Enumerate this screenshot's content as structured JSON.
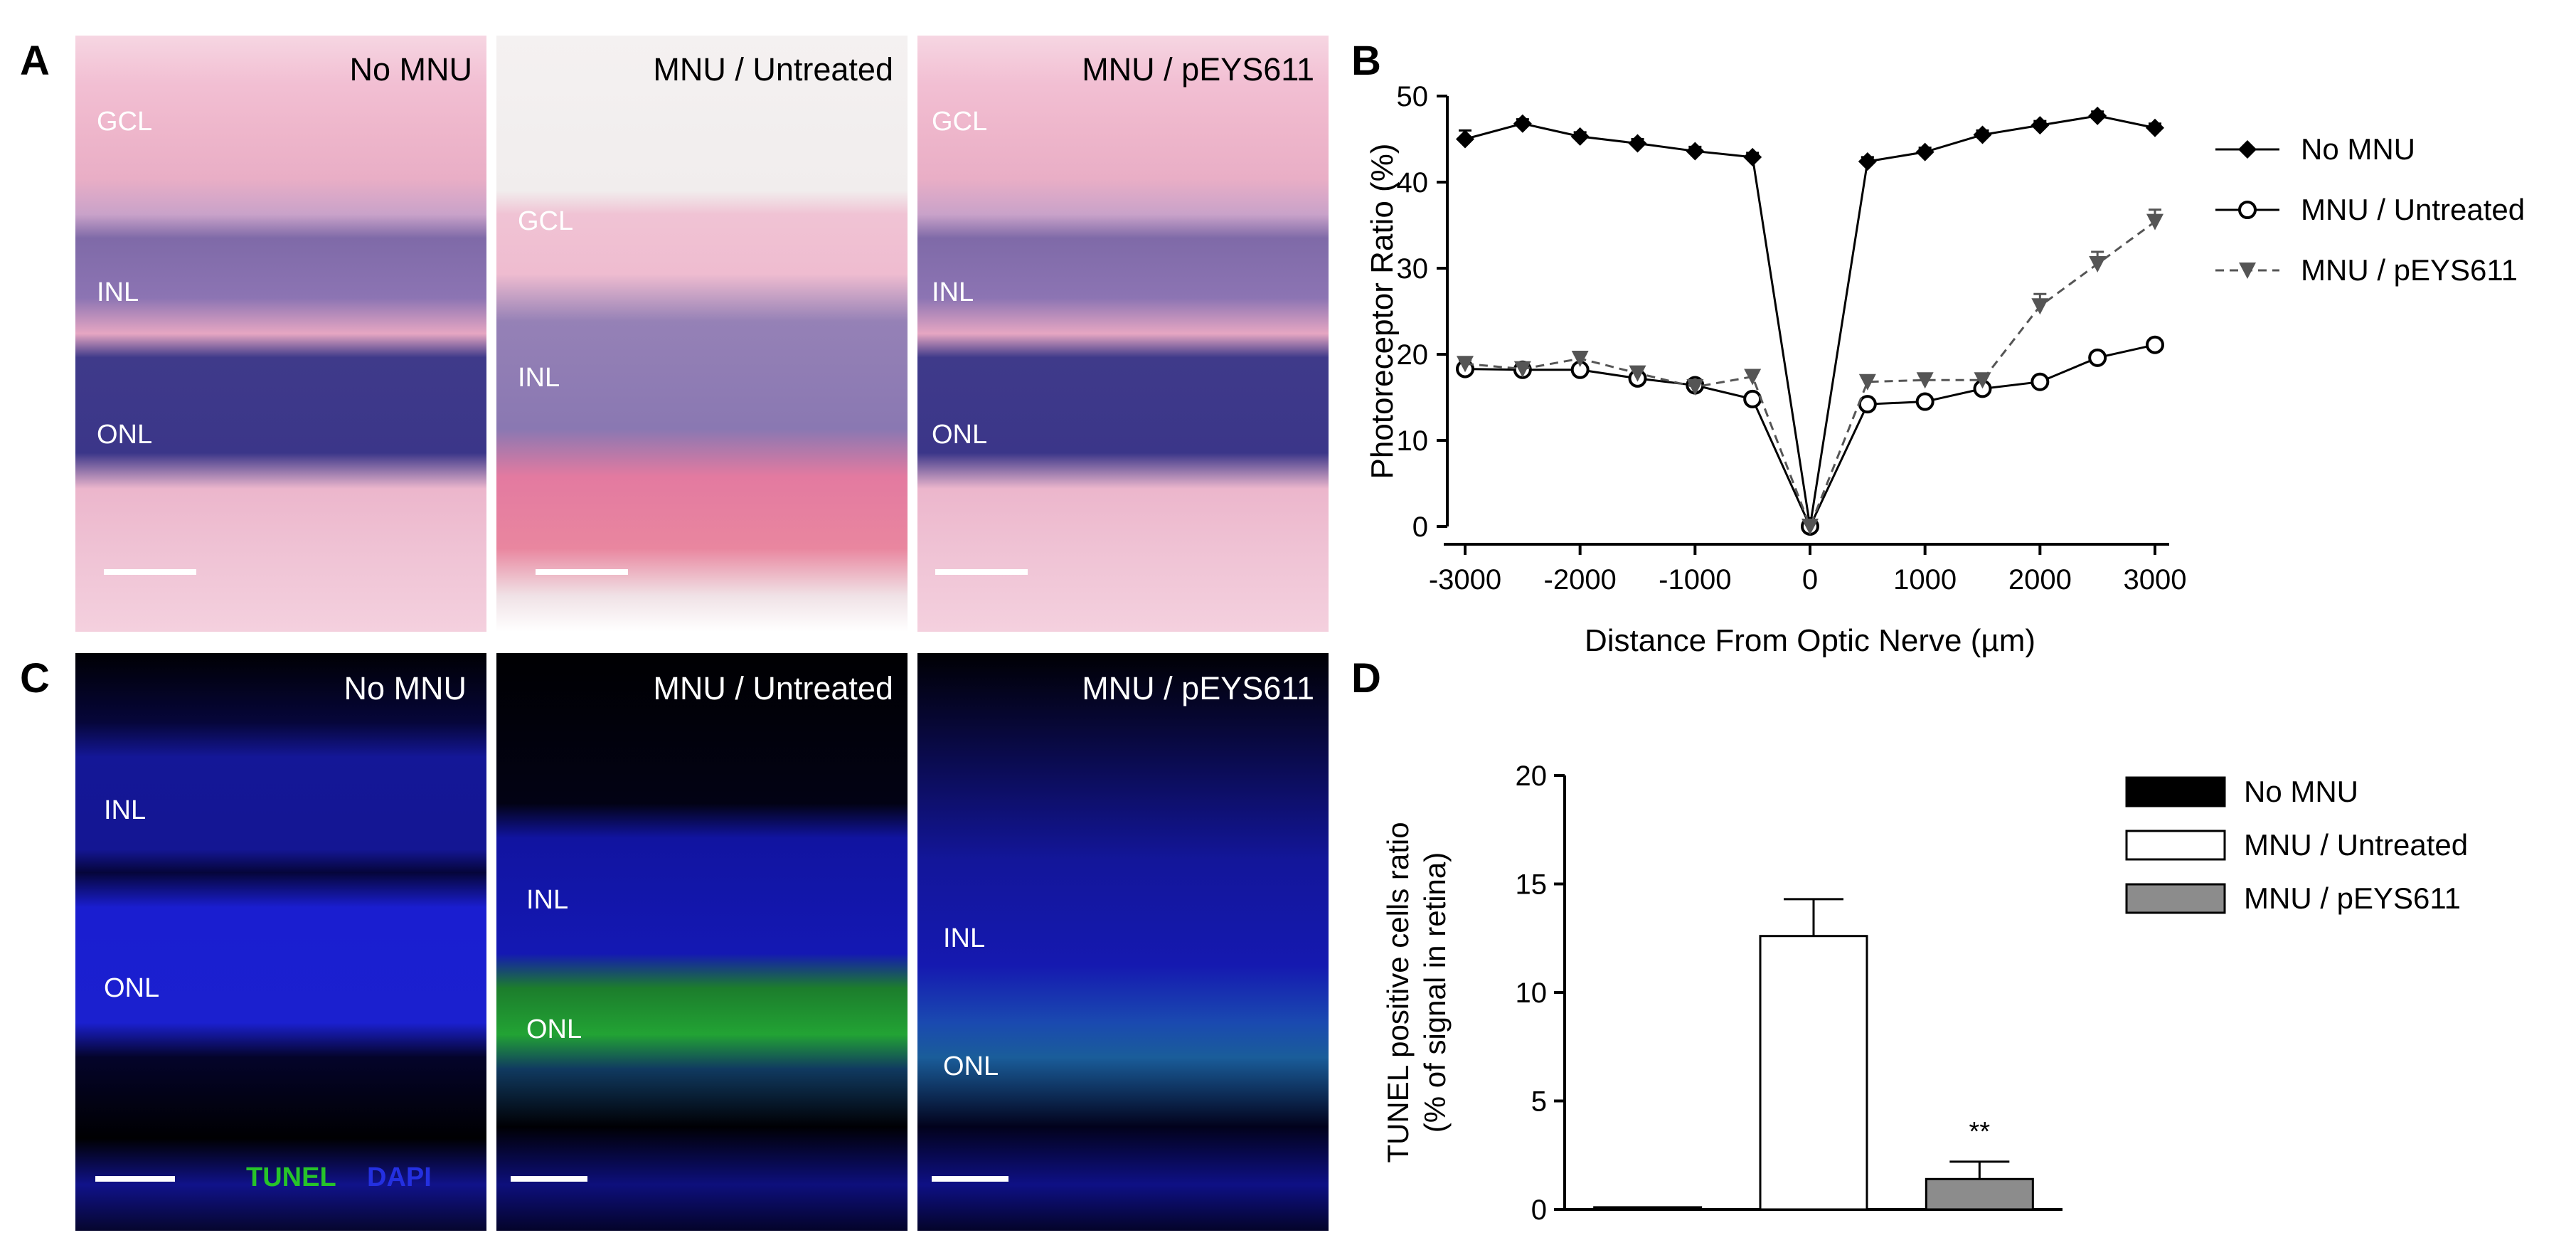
{
  "panels": {
    "a": {
      "letter": "A",
      "images": [
        {
          "title": "No MNU",
          "labels": [
            "GCL",
            "INL",
            "ONL"
          ]
        },
        {
          "title": "MNU / Untreated",
          "labels": [
            "GCL",
            "INL"
          ]
        },
        {
          "title": "MNU / pEYS611",
          "labels": [
            "GCL",
            "INL",
            "ONL"
          ]
        }
      ]
    },
    "b": {
      "letter": "B"
    },
    "c": {
      "letter": "C",
      "images": [
        {
          "title": "No MNU",
          "labels": [
            "INL",
            "ONL"
          ]
        },
        {
          "title": "MNU / Untreated",
          "labels": [
            "INL",
            "ONL"
          ]
        },
        {
          "title": "MNU / pEYS611",
          "labels": [
            "INL",
            "ONL"
          ]
        }
      ],
      "stain_tunel": "TUNEL",
      "stain_dapi": "DAPI",
      "colors": {
        "tunel": "#27c42a",
        "dapi": "#2430e0"
      }
    },
    "d": {
      "letter": "D"
    }
  },
  "chart_data": [
    {
      "type": "line",
      "xlabel": "Distance From Optic Nerve (µm)",
      "ylabel": "Photoreceptor Ratio (%)",
      "xlim": [
        -3000,
        3000
      ],
      "ylim": [
        0,
        50
      ],
      "x": [
        -3000,
        -2500,
        -2000,
        -1500,
        -1000,
        -500,
        0,
        500,
        1000,
        1500,
        2000,
        2500,
        3000
      ],
      "xticks": [
        "-3000",
        "-2000",
        "-1000",
        "0",
        "1000",
        "2000",
        "3000"
      ],
      "yticks": [
        "0",
        "10",
        "20",
        "30",
        "40",
        "50"
      ],
      "legend_position": "right",
      "series": [
        {
          "name": "No MNU",
          "marker": "diamond-filled",
          "line": "solid",
          "color": "#000000",
          "values": [
            45.0,
            46.8,
            45.3,
            44.5,
            43.6,
            42.9,
            0,
            42.4,
            43.5,
            45.5,
            46.6,
            47.7,
            46.3
          ],
          "errors": [
            1.0,
            0.5,
            0.5,
            0.5,
            0.5,
            0.5,
            0,
            0.5,
            0.5,
            0.5,
            0.5,
            0.5,
            0.5
          ]
        },
        {
          "name": "MNU / Untreated",
          "marker": "circle-open",
          "line": "solid",
          "color": "#000000",
          "values": [
            18.3,
            18.2,
            18.2,
            17.2,
            16.4,
            14.8,
            0,
            14.2,
            14.5,
            16.0,
            16.8,
            19.6,
            21.1
          ],
          "errors": [
            1.0,
            0.5,
            0.5,
            0.5,
            0.5,
            0.5,
            0,
            0.5,
            0.5,
            0.5,
            0.5,
            0.5,
            0.5
          ]
        },
        {
          "name": "MNU / pEYS611",
          "marker": "triangle-down-filled",
          "line": "dashed",
          "color": "#555555",
          "values": [
            18.9,
            18.3,
            19.5,
            17.8,
            16.2,
            17.4,
            0,
            16.8,
            17.0,
            17.0,
            25.6,
            30.5,
            35.4
          ],
          "errors": [
            0.5,
            0.5,
            0.5,
            0.5,
            0.5,
            0.5,
            0,
            0.5,
            0.5,
            0.5,
            1.4,
            1.4,
            1.4
          ]
        }
      ]
    },
    {
      "type": "bar",
      "ylabel": "TUNEL positive cells ratio",
      "ylabel2": "(% of signal in retina)",
      "ylim": [
        0,
        20
      ],
      "yticks": [
        "0",
        "5",
        "10",
        "15",
        "20"
      ],
      "categories": [
        "No MNU",
        "MNU / Untreated",
        "MNU / pEYS611"
      ],
      "values": [
        0.1,
        12.6,
        1.4
      ],
      "errors": [
        0,
        1.7,
        0.8
      ],
      "colors": [
        "#000000",
        "#ffffff",
        "#8c8c8c"
      ],
      "annotations": [
        "",
        "",
        "**"
      ],
      "legend_position": "top-right"
    }
  ]
}
